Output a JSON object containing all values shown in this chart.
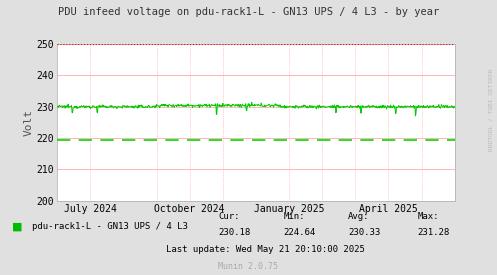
{
  "title": "PDU infeed voltage on pdu-rack1-L - GN13 UPS / 4 L3 - by year",
  "ylabel": "Volt",
  "ylim": [
    200,
    250
  ],
  "yticks": [
    200,
    210,
    220,
    230,
    240,
    250
  ],
  "bg_color": "#e0e0e0",
  "plot_bg_color": "#ffffff",
  "grid_color": "#ff9999",
  "line_color": "#00cc00",
  "dashed_line_value": 219.5,
  "dashed_line_color": "#00dd00",
  "upper_dashed_value": 250,
  "upper_dashed_color": "#ff0000",
  "legend_label": "pdu-rack1-L - GN13 UPS / 4 L3",
  "legend_color": "#00bb00",
  "stats_cur": "230.18",
  "stats_min": "224.64",
  "stats_avg": "230.33",
  "stats_max": "231.28",
  "last_update": "Last update: Wed May 21 20:10:00 2025",
  "munin_version": "Munin 2.0.75",
  "xtick_positions": [
    0.083,
    0.333,
    0.583,
    0.833
  ],
  "xtick_labels": [
    "July 2024",
    "October 2024",
    "January 2025",
    "April 2025"
  ],
  "rrdtool_label": "RRDTOOL / TOBI OETIKER",
  "vgrid_positions": [
    0.083,
    0.25,
    0.333,
    0.417,
    0.583,
    0.667,
    0.75,
    0.833,
    0.917
  ]
}
